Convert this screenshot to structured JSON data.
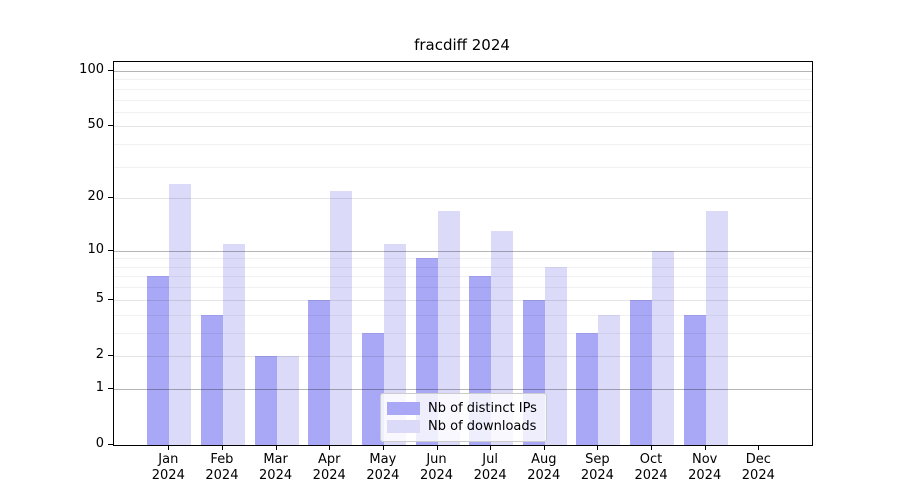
{
  "chart_data": {
    "type": "bar",
    "title": "fracdiff 2024",
    "categories": [
      "Jan",
      "Feb",
      "Mar",
      "Apr",
      "May",
      "Jun",
      "Jul",
      "Aug",
      "Sep",
      "Oct",
      "Nov",
      "Dec"
    ],
    "x_year_label": "2024",
    "series": [
      {
        "name": "Nb of distinct IPs",
        "color": "#a8a8f6",
        "values": [
          7,
          4,
          2,
          5,
          3,
          9,
          7,
          5,
          3,
          5,
          4,
          0
        ]
      },
      {
        "name": "Nb of downloads",
        "color": "#dbdbf9",
        "values": [
          24,
          11,
          2,
          22,
          11,
          17,
          13,
          8,
          4,
          10,
          17,
          0
        ]
      }
    ],
    "yscale": "log1p",
    "ylim": [
      0,
      112
    ],
    "ytick_labels": [
      0,
      1,
      2,
      5,
      10,
      20,
      50,
      100
    ],
    "decade_ticks": [
      1,
      10,
      100
    ],
    "minor_ticks": [
      3,
      4,
      6,
      7,
      8,
      9,
      30,
      40,
      60,
      70,
      80,
      90
    ],
    "grid": "horizontal",
    "legend_position": "lower center",
    "xlabel": "",
    "ylabel": ""
  },
  "legend": {
    "items": [
      {
        "label": "Nb of distinct IPs",
        "swatch_color": "#a8a8f6"
      },
      {
        "label": "Nb of downloads",
        "swatch_color": "#dbdbf9"
      }
    ]
  }
}
